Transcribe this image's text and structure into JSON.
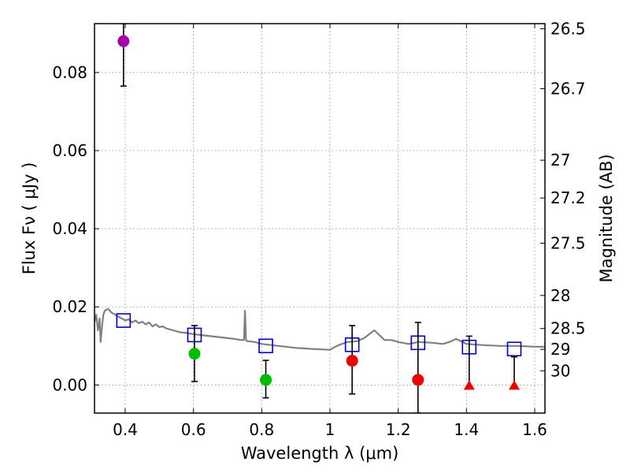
{
  "chart_data": {
    "type": "scatter",
    "xlabel": "Wavelength  λ (μm)",
    "ylabel_left": "Flux  Fν  ( μJy )",
    "ylabel_right": "Magnitude (AB)",
    "xlim": [
      0.31,
      1.63
    ],
    "ylim": [
      -0.0072,
      0.0925
    ],
    "x_ticks": [
      0.4,
      0.6,
      0.8,
      1.0,
      1.2,
      1.4,
      1.6
    ],
    "x_tick_labels": [
      "0.4",
      "0.6",
      "0.8",
      "1",
      "1.2",
      "1.4",
      "1.6"
    ],
    "y_ticks": [
      0.0,
      0.02,
      0.04,
      0.06,
      0.08
    ],
    "y_tick_labels": [
      "0.00",
      "0.02",
      "0.04",
      "0.06",
      "0.08"
    ],
    "magnitude_ticks": [
      26.5,
      26.7,
      27,
      27.2,
      27.5,
      28,
      28.5,
      29,
      30
    ],
    "magnitude_tick_labels": [
      "26.5",
      "26.7",
      "27",
      "27.2",
      "27.5",
      "28",
      "28.5",
      "29",
      "30"
    ],
    "grid": true,
    "colors": {
      "template": "#808080",
      "model": "#0000cc",
      "detection_blue": "#aa00aa",
      "detection_optical": "#00bb00",
      "detection_ir": "#ee0000",
      "upper_limit": "#ee0000",
      "errorbar": "#000000",
      "grid": "#888888"
    },
    "series": [
      {
        "name": "template",
        "kind": "line",
        "x": [
          0.31,
          0.315,
          0.32,
          0.325,
          0.328,
          0.332,
          0.336,
          0.34,
          0.35,
          0.36,
          0.37,
          0.38,
          0.39,
          0.4,
          0.41,
          0.42,
          0.43,
          0.44,
          0.45,
          0.46,
          0.47,
          0.48,
          0.49,
          0.5,
          0.51,
          0.52,
          0.54,
          0.56,
          0.58,
          0.6,
          0.62,
          0.65,
          0.68,
          0.7,
          0.72,
          0.74,
          0.748,
          0.751,
          0.754,
          0.757,
          0.76,
          0.78,
          0.8,
          0.85,
          0.9,
          0.95,
          1.0,
          1.02,
          1.05,
          1.08,
          1.1,
          1.13,
          1.16,
          1.18,
          1.2,
          1.23,
          1.26,
          1.3,
          1.33,
          1.35,
          1.37,
          1.4,
          1.45,
          1.5,
          1.55,
          1.6,
          1.63
        ],
        "y": [
          0.016,
          0.018,
          0.014,
          0.017,
          0.011,
          0.015,
          0.018,
          0.019,
          0.0195,
          0.0185,
          0.018,
          0.0175,
          0.017,
          0.0165,
          0.0168,
          0.016,
          0.0165,
          0.0158,
          0.0162,
          0.0155,
          0.016,
          0.015,
          0.0155,
          0.0148,
          0.015,
          0.0145,
          0.014,
          0.0135,
          0.0133,
          0.013,
          0.0128,
          0.0125,
          0.0122,
          0.012,
          0.0118,
          0.0115,
          0.0115,
          0.019,
          0.0115,
          0.0112,
          0.0112,
          0.011,
          0.0105,
          0.01,
          0.0095,
          0.0092,
          0.009,
          0.01,
          0.011,
          0.0112,
          0.012,
          0.014,
          0.0115,
          0.0115,
          0.011,
          0.0105,
          0.011,
          0.0108,
          0.0105,
          0.011,
          0.0118,
          0.0105,
          0.0102,
          0.01,
          0.01,
          0.0098,
          0.0098
        ]
      },
      {
        "name": "model",
        "kind": "open-square",
        "x": [
          0.395,
          0.603,
          0.812,
          1.065,
          1.258,
          1.408,
          1.54
        ],
        "y": [
          0.0165,
          0.0128,
          0.01,
          0.0103,
          0.0108,
          0.0097,
          0.0092
        ]
      },
      {
        "name": "detection_blue",
        "kind": "circle",
        "x": [
          0.395
        ],
        "y": [
          0.088
        ],
        "yerr_low": [
          0.0115
        ],
        "yerr_high": [
          0.0045
        ]
      },
      {
        "name": "detection_optical",
        "kind": "circle",
        "x": [
          0.603,
          0.812
        ],
        "y": [
          0.008,
          0.0013
        ],
        "yerr_low": [
          0.0071,
          0.0046
        ],
        "yerr_high": [
          0.0072,
          0.005
        ]
      },
      {
        "name": "detection_ir",
        "kind": "circle",
        "x": [
          1.065,
          1.258
        ],
        "y": [
          0.0062,
          0.0013
        ],
        "yerr_low": [
          0.0085,
          0.0085
        ],
        "yerr_high": [
          0.009,
          0.0147
        ]
      },
      {
        "name": "upper_limit",
        "kind": "triangle",
        "x": [
          1.408,
          1.54
        ],
        "y": [
          -0.0002,
          -0.0002
        ],
        "yerr_low": [
          0.0,
          0.0
        ],
        "yerr_high": [
          0.0127,
          0.0074
        ]
      }
    ]
  }
}
